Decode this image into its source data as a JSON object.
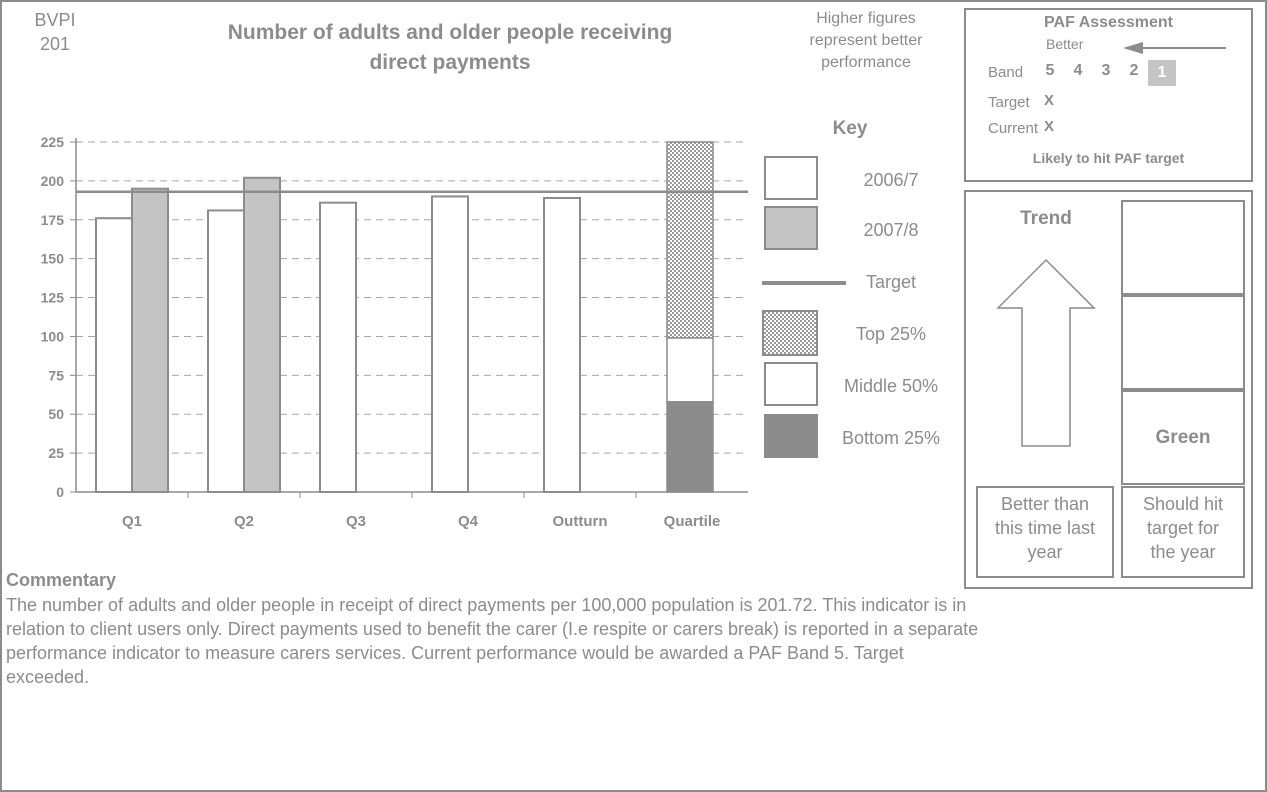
{
  "header": {
    "bvpi_line1": "BVPI",
    "bvpi_line2": "201",
    "title_line1": "Number of adults and older people receiving",
    "title_line2": "direct payments",
    "note_line1": "Higher figures",
    "note_line2": "represent better",
    "note_line3": "performance"
  },
  "paf": {
    "title": "PAF Assessment",
    "better_label": "Better",
    "band_label": "Band",
    "bands": [
      "5",
      "4",
      "3",
      "2",
      "1"
    ],
    "target_label": "Target",
    "target_mark": "X",
    "current_label": "Current",
    "current_mark": "X",
    "verdict": "Likely to hit PAF target"
  },
  "trend": {
    "title": "Trend",
    "status": "Green",
    "trend_caption_1": "Better than",
    "trend_caption_2": "this time last",
    "trend_caption_3": "year",
    "target_caption_1": "Should hit",
    "target_caption_2": "target for",
    "target_caption_3": "the year"
  },
  "key": {
    "title": "Key",
    "items": [
      "2006/7",
      "2007/8",
      "Target",
      "Top 25%",
      "Middle 50%",
      "Bottom 25%"
    ]
  },
  "commentary": {
    "title": "Commentary",
    "line1": "The number of adults and older people in receipt of direct payments per 100,000 population is 201.72.  This indicator is in",
    "line2": "relation to client users only.  Direct payments used to benefit the carer (I.e respite or carers break) is reported in a separate",
    "line3": "performance indicator to measure carers services.  Current performance would be awarded a PAF Band 5.  Target",
    "line4": "exceeded."
  },
  "colors": {
    "axis": "#8c8c8c",
    "series_2006": "#ffffff",
    "series_2007": "#c4c4c4",
    "target_line": "#8c8c8c",
    "bottom_quartile": "#8c8c8c",
    "middle_quartile": "#ffffff"
  },
  "chart_data": {
    "type": "bar",
    "categories": [
      "Q1",
      "Q2",
      "Q3",
      "Q4",
      "Outturn",
      "Quartile"
    ],
    "series": [
      {
        "name": "2006/7",
        "values": [
          176,
          181,
          186,
          190,
          189,
          null
        ]
      },
      {
        "name": "2007/8",
        "values": [
          195,
          202,
          null,
          null,
          null,
          null
        ]
      }
    ],
    "target": 193,
    "quartiles": {
      "bottom": 58,
      "middle": 99,
      "top": 225
    },
    "ylim": [
      0,
      225
    ],
    "yticks": [
      0,
      25,
      50,
      75,
      100,
      125,
      150,
      175,
      200,
      225
    ],
    "grid": true,
    "legend": "right"
  }
}
